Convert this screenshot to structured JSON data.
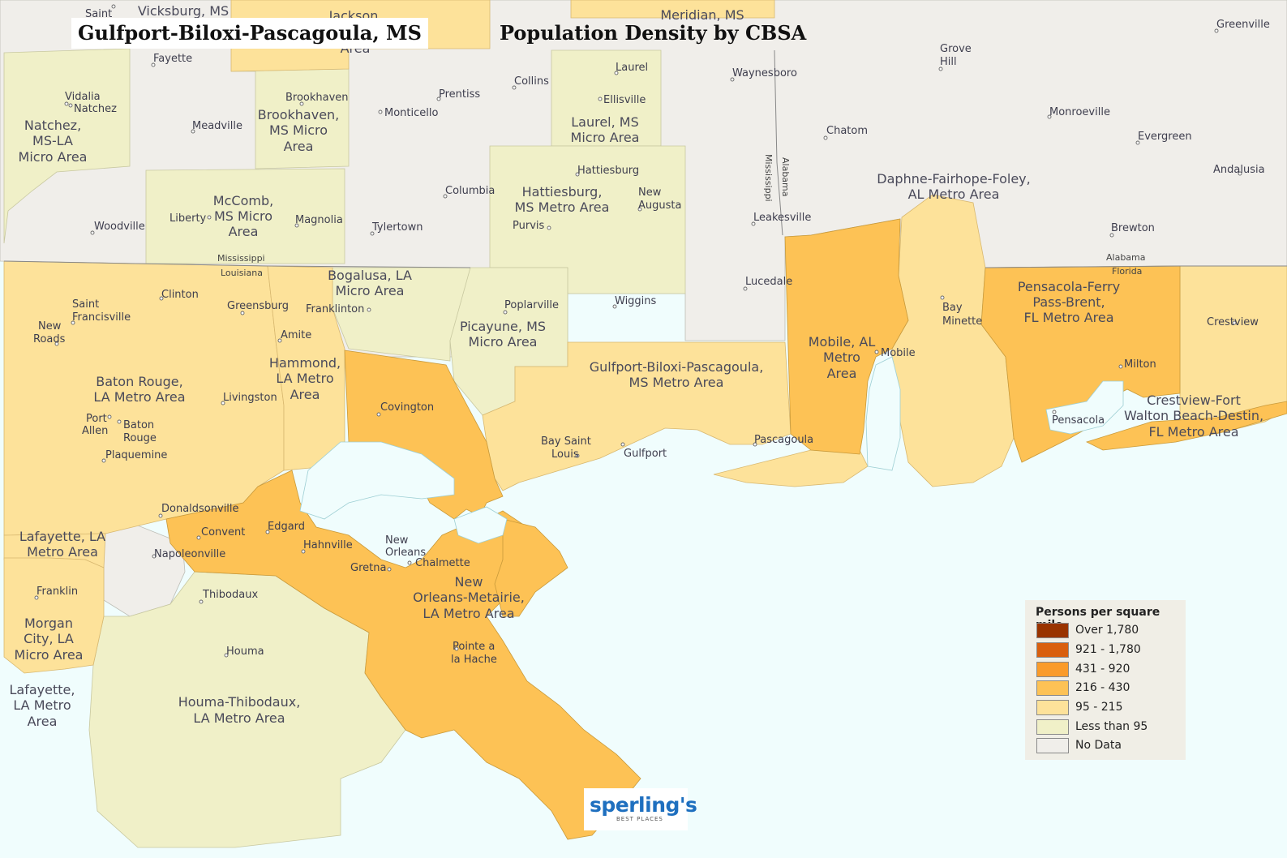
{
  "map_title": "Gulfport-Biloxi-Pascagoula, MS",
  "map_subtitle": "Population Density by CBSA",
  "legend": {
    "title": "Persons per square mile",
    "items": [
      {
        "label": "Over 1,780",
        "color": "#993300"
      },
      {
        "label": "921 - 1,780",
        "color": "#d95f0e"
      },
      {
        "label": "431 - 920",
        "color": "#fa9b2a"
      },
      {
        "label": "216 - 430",
        "color": "#fdc255"
      },
      {
        "label": "95 - 215",
        "color": "#fde29a"
      },
      {
        "label": "Less than 95",
        "color": "#f0f0c8"
      },
      {
        "label": "No Data",
        "color": "#f0eeea"
      }
    ]
  },
  "logo": {
    "wordmark": "sperling's",
    "tagline": "BEST PLACES"
  },
  "state_labels": [
    "Mississippi",
    "Louisiana",
    "Mississippi",
    "Alabama",
    "Alabama",
    "Florida"
  ],
  "region_labels": [
    "Natchez,",
    "MS-LA",
    "Micro Area",
    "Brookhaven,",
    "MS Micro",
    "Area",
    "McComb,",
    "MS Micro",
    "Area",
    "Laurel, MS",
    "Micro Area",
    "Hattiesburg,",
    "MS Metro Area",
    "Bogalusa, LA",
    "Micro Area",
    "Picayune, MS",
    "Micro Area",
    "Gulfport-Biloxi-Pascagoula,",
    "MS Metro Area",
    "Daphne-Fairhope-Foley,",
    "AL Metro Area",
    "Mobile, AL",
    "Metro",
    "Area",
    "Pensacola-Ferry",
    "Pass-Brent,",
    "FL Metro Area",
    "Crestview-Fort",
    "Walton Beach-Destin,",
    "FL Metro Area",
    "Baton Rouge,",
    "LA Metro Area",
    "Hammond,",
    "LA Metro",
    "Area",
    "New",
    "Orleans-Metairie,",
    "LA Metro Area",
    "Lafayette, LA",
    "Metro Area",
    "Morgan",
    "City, LA",
    "Micro Area",
    "Lafayette,",
    "LA Metro",
    "Area",
    "Houma-Thibodaux,",
    "LA Metro Area",
    "Vicksburg, MS",
    "Jackson",
    "Area",
    "Meridian, MS"
  ],
  "cities": [
    "Saint",
    "Fayette",
    "Vidalia",
    "Natchez",
    "Meadville",
    "Brookhaven",
    "Prentiss",
    "Monticello",
    "Collins",
    "Laurel",
    "Ellisville",
    "Waynesboro",
    "Grove",
    "Hill",
    "Greenville",
    "Monroeville",
    "Chatom",
    "Evergreen",
    "Andalusia",
    "Hattiesburg",
    "Columbia",
    "New",
    "Augusta",
    "Purvis",
    "Woodville",
    "Liberty",
    "Magnolia",
    "Tylertown",
    "Leakesville",
    "Brewton",
    "Lucedale",
    "Wiggins",
    "Poplarville",
    "Franklinton",
    "Clinton",
    "Greensburg",
    "Saint",
    "Francisville",
    "New",
    "Roads",
    "Amite",
    "Livingston",
    "Port",
    "Allen",
    "Baton",
    "Rouge",
    "Plaquemine",
    "Covington",
    "Bay",
    "Minette",
    "Mobile",
    "Milton",
    "Crestview",
    "Pensacola",
    "Bay Saint",
    "Louis",
    "Gulfport",
    "Pascagoula",
    "Donaldsonville",
    "Convent",
    "Edgard",
    "Hahnville",
    "New",
    "Orleans",
    "Chalmette",
    "Gretna",
    "Napoleonville",
    "Franklin",
    "Thibodaux",
    "Houma",
    "Pointe a",
    "la Hache"
  ]
}
